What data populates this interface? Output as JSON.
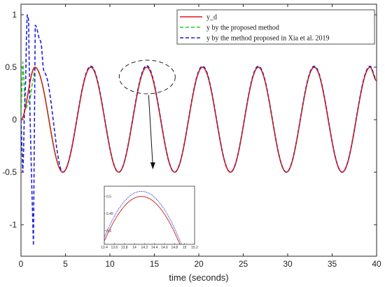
{
  "chart_data": {
    "type": "line",
    "xlabel": "time (seconds)",
    "ylabel": "",
    "xlim": [
      0,
      40
    ],
    "ylim": [
      -1.3,
      1.1
    ],
    "xticks": [
      "0",
      "5",
      "10",
      "15",
      "20",
      "25",
      "30",
      "35",
      "40"
    ],
    "yticks": [
      "1",
      "0.5",
      "0",
      "-0.5",
      "-1"
    ],
    "grid": false,
    "legend_position": "top-right",
    "reference": {
      "amplitude": 0.5,
      "period_s": 6.28
    },
    "series": [
      {
        "name": "y_d",
        "color": "#e8121b",
        "style": "solid",
        "x": [
          0,
          1.57,
          4.71,
          7.85,
          10.99,
          14.14,
          17.28,
          20.42,
          23.56,
          26.7,
          29.85,
          32.99,
          36.13,
          39.27,
          40
        ],
        "y": [
          0,
          0.5,
          -0.5,
          0.5,
          -0.5,
          0.5,
          -0.5,
          0.5,
          -0.5,
          0.5,
          -0.5,
          0.5,
          -0.5,
          0.5,
          0.37
        ]
      },
      {
        "name": "y by the proposed method",
        "color": "#22d11c",
        "style": "dashed",
        "x": [
          0,
          0.1,
          0.2,
          0.5,
          1.0,
          1.3,
          1.57,
          4.71,
          7.85,
          10.99,
          14.14,
          17.28,
          20.42,
          23.56,
          26.7,
          29.85,
          32.99,
          36.13,
          39.27,
          40
        ],
        "y": [
          0,
          0.3,
          0.55,
          0.1,
          0.2,
          0.35,
          0.5,
          -0.5,
          0.5,
          -0.5,
          0.5,
          -0.5,
          0.5,
          -0.5,
          0.5,
          -0.5,
          0.5,
          -0.5,
          0.5,
          0.37
        ]
      },
      {
        "name": "y by the method proposed in Xia et al. 2019",
        "color": "#1c1ce0",
        "style": "dashed",
        "x": [
          0,
          0.2,
          0.45,
          0.7,
          0.85,
          1.0,
          1.2,
          1.4,
          1.6,
          2.2,
          2.6,
          4.71,
          7.85,
          10.99,
          14.14,
          17.28,
          20.42,
          23.56,
          26.7,
          29.85,
          32.99,
          36.13,
          39.27,
          40
        ],
        "y": [
          0,
          -0.5,
          0.2,
          1.0,
          0.95,
          0.1,
          -0.6,
          -1.2,
          0.9,
          0.75,
          0.45,
          -0.5,
          0.51,
          -0.5,
          0.515,
          -0.5,
          0.51,
          -0.5,
          0.51,
          -0.5,
          0.51,
          -0.5,
          0.51,
          0.38
        ]
      }
    ],
    "inset": {
      "xlim": [
        13.4,
        15.2
      ],
      "ylim": [
        0.36,
        0.53
      ],
      "xticks": [
        "13.4",
        "13.6",
        "13.8",
        "14",
        "14.2",
        "14.4",
        "14.6",
        "14.8",
        "15",
        "15.2"
      ],
      "yticks": [
        "0.5",
        "0.45",
        "0.4"
      ],
      "peak_x": 14.14,
      "red_peak": 0.5,
      "blue_peak": 0.515
    },
    "zoom_ellipse_center": [
      14.2,
      0.5
    ]
  },
  "legend": {
    "items": [
      {
        "label": "y_d",
        "color": "#e8121b",
        "dash": ""
      },
      {
        "label": "y by the proposed method",
        "color": "#22d11c",
        "dash": "5,3"
      },
      {
        "label": "y by the method proposed in Xia et al. 2019",
        "color": "#1c1ce0",
        "dash": "5,3"
      }
    ]
  }
}
